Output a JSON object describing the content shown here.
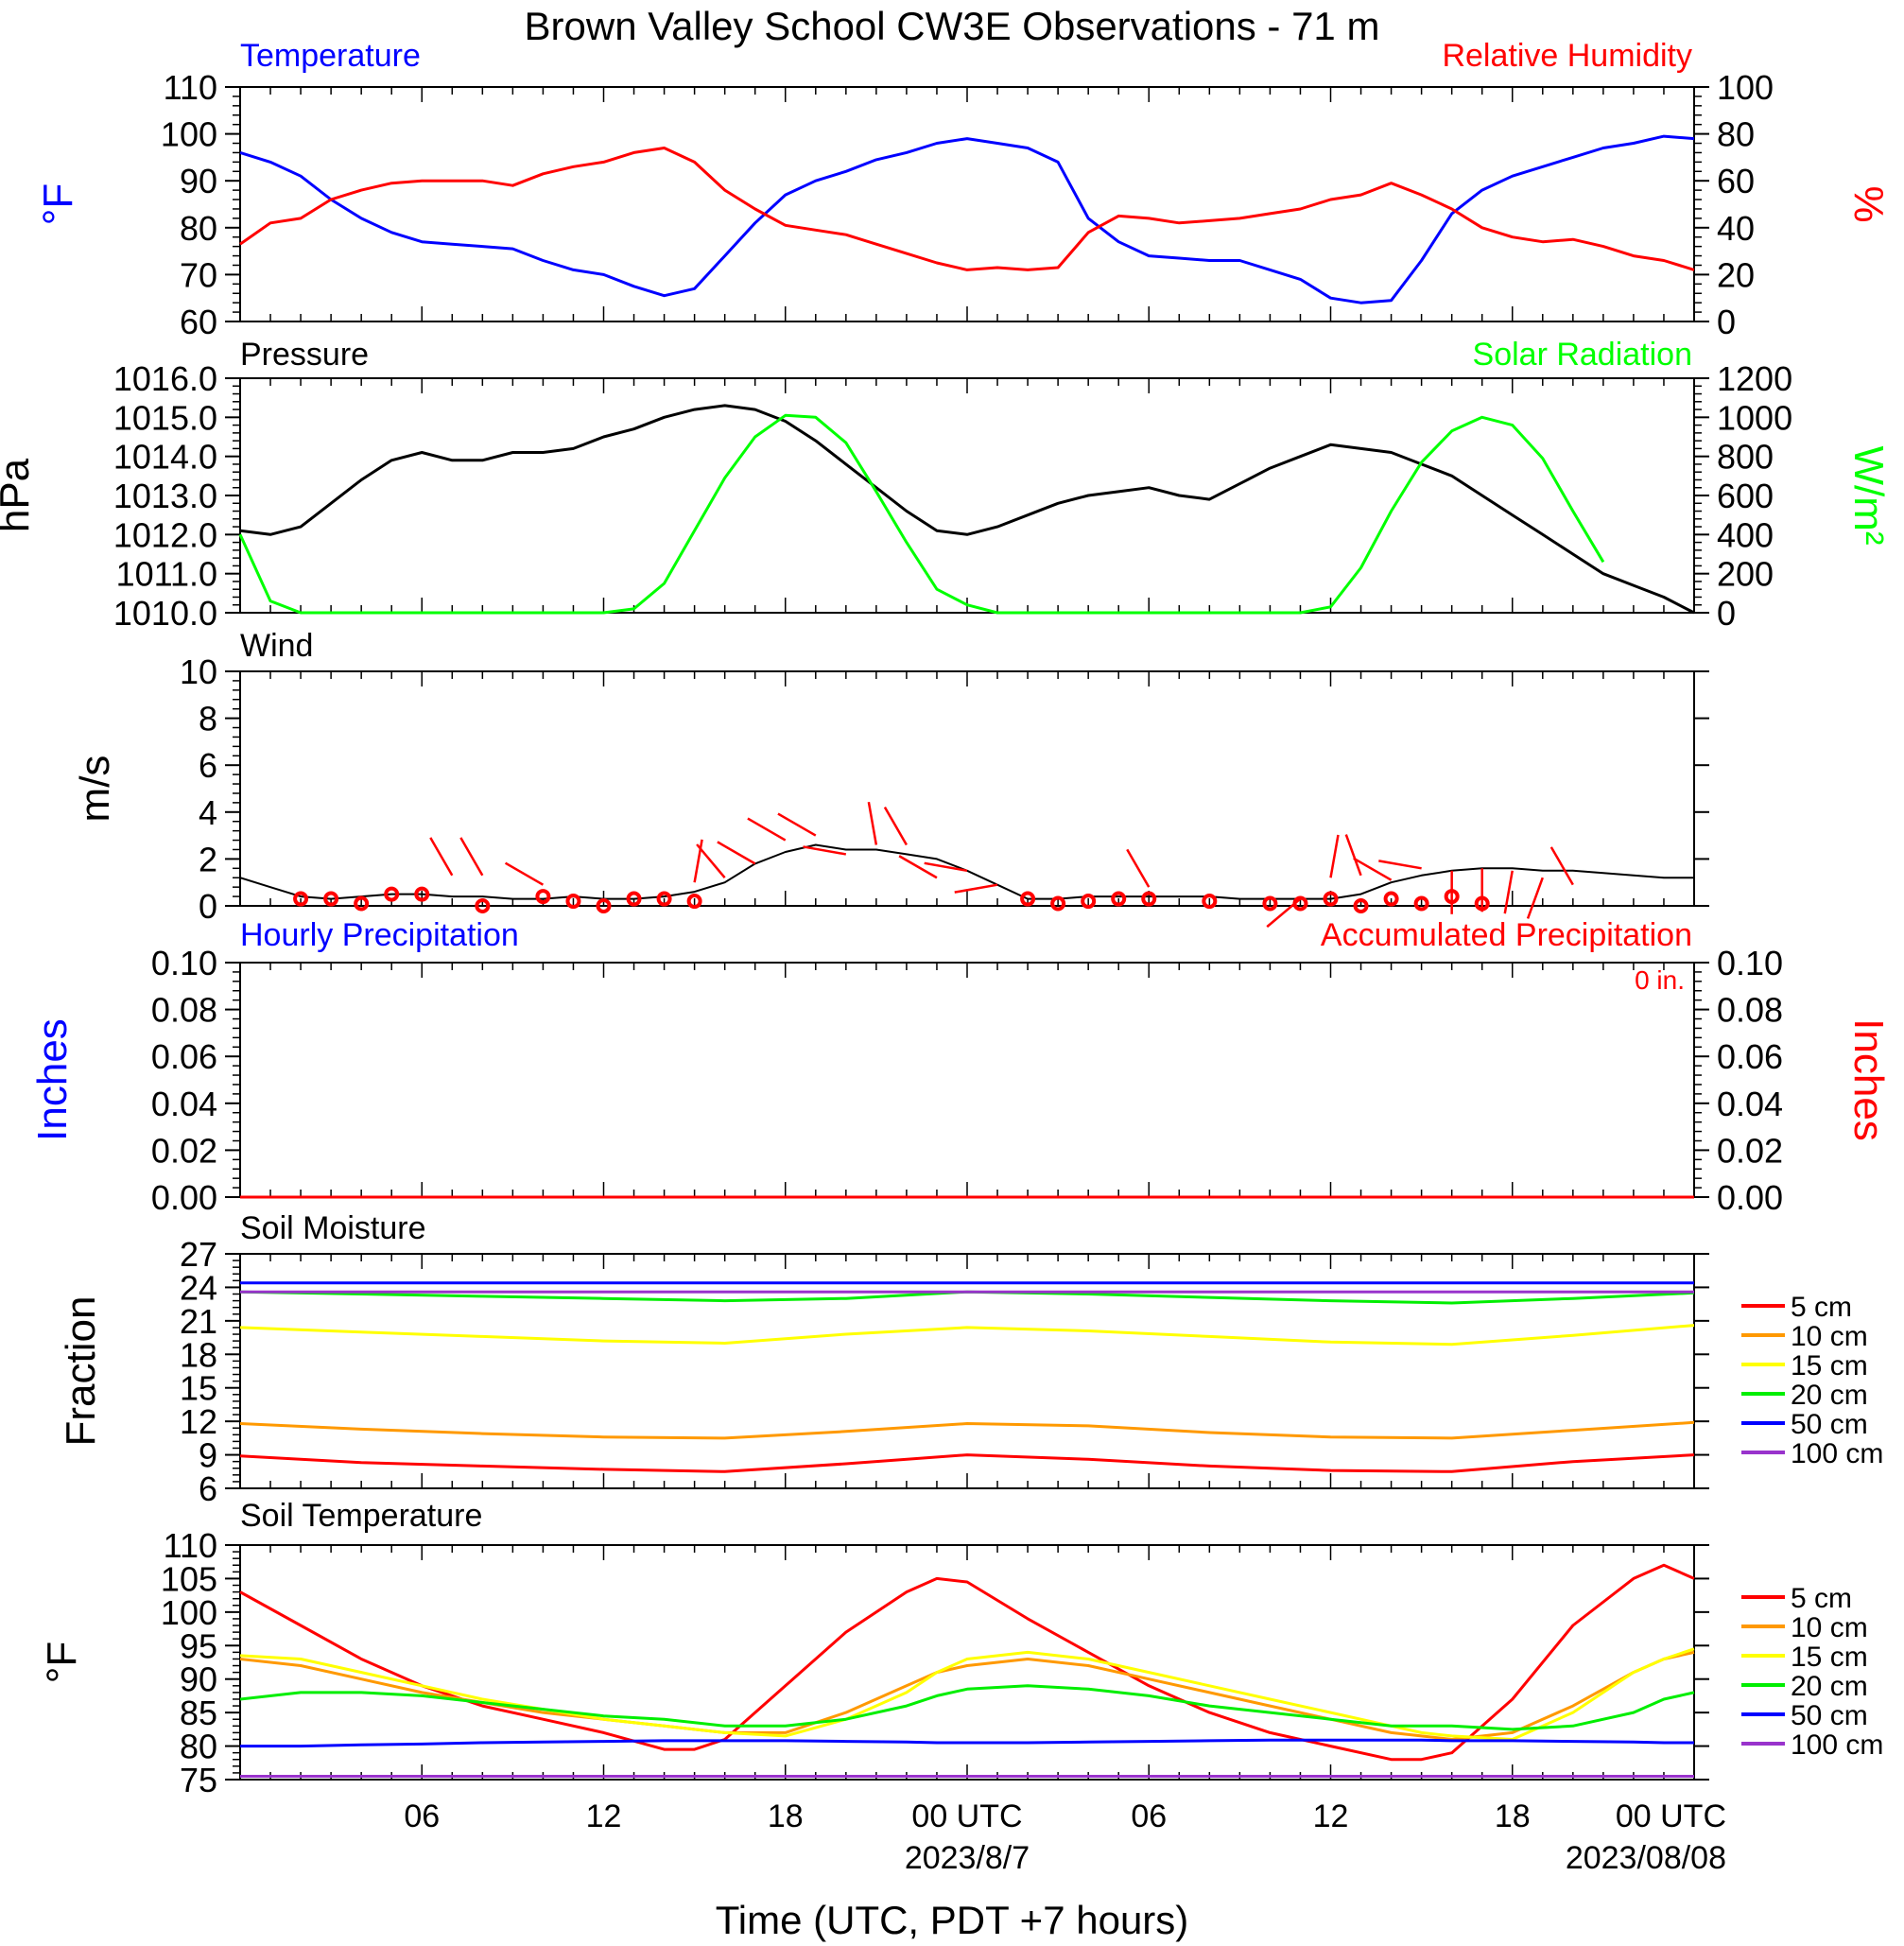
{
  "title": "Brown Valley School CW3E Observations - 71 m",
  "xlabel": "Time (UTC, PDT +7 hours)",
  "time_axis": {
    "ticks": [
      "06",
      "12",
      "18",
      "00 UTC",
      "06",
      "12",
      "18",
      "00 UTC"
    ],
    "dates": [
      "2023/8/7",
      "2023/08/08"
    ]
  },
  "colors": {
    "temperature": "#0000ff",
    "humidity": "#ff0000",
    "pressure": "#000000",
    "solar": "#00ff00",
    "wind": "#000000",
    "barb": "#ff0000",
    "hourly_precip": "#0000ff",
    "accum_precip": "#ff0000",
    "depth_5cm": "#ff0000",
    "depth_10cm": "#ff9900",
    "depth_15cm": "#ffff00",
    "depth_20cm": "#00ee00",
    "depth_50cm": "#0000ff",
    "depth_100cm": "#9933cc"
  },
  "chart_data": [
    {
      "type": "line",
      "panel": "temperature_humidity",
      "left_title": "Temperature",
      "right_title": "Relative Humidity",
      "ylabel_left": "°F",
      "ylabel_right": "%",
      "ylim_left": [
        60,
        110
      ],
      "ylim_right": [
        0,
        100
      ],
      "yticks_left": [
        "110",
        "100",
        "90",
        "80",
        "70",
        "60"
      ],
      "yticks_right": [
        "100",
        "80",
        "60",
        "40",
        "20",
        "0"
      ],
      "x": [
        0,
        1,
        2,
        3,
        4,
        5,
        6,
        7,
        8,
        9,
        10,
        11,
        12,
        13,
        14,
        15,
        16,
        17,
        18,
        19,
        20,
        21,
        22,
        23,
        24,
        25,
        26,
        27,
        28,
        29,
        30,
        31,
        32,
        33,
        34,
        35,
        36,
        37,
        38,
        39,
        40,
        41,
        42,
        43,
        44,
        45,
        46,
        47,
        48
      ],
      "series": [
        {
          "name": "Temperature",
          "axis": "left",
          "color_key": "temperature",
          "values": [
            96,
            94,
            91,
            86,
            82,
            79,
            77,
            76.5,
            76,
            75.5,
            73,
            71,
            70,
            67.5,
            65.5,
            67,
            74,
            81,
            87,
            90,
            92,
            94.5,
            96,
            98,
            99,
            98,
            97,
            94,
            82,
            77,
            74,
            73.5,
            73,
            73,
            71,
            69,
            65,
            64,
            64.5,
            73,
            83,
            88,
            91,
            93,
            95,
            97,
            98,
            99.5,
            99
          ]
        },
        {
          "name": "Relative Humidity",
          "axis": "right",
          "color_key": "humidity",
          "values": [
            33,
            42,
            44,
            52,
            56,
            59,
            60,
            60,
            60,
            58,
            63,
            66,
            68,
            72,
            74,
            68,
            56,
            48,
            41,
            39,
            37,
            33,
            29,
            25,
            22,
            23,
            22,
            23,
            38,
            45,
            44,
            42,
            43,
            44,
            46,
            48,
            52,
            54,
            59,
            54,
            48,
            40,
            36,
            34,
            35,
            32,
            28,
            26,
            22
          ]
        }
      ]
    },
    {
      "type": "line",
      "panel": "pressure_solar",
      "left_title": "Pressure",
      "right_title": "Solar Radiation",
      "ylabel_left": "hPa",
      "ylabel_right": "W/m²",
      "ylim_left": [
        1010,
        1016
      ],
      "ylim_right": [
        0,
        1200
      ],
      "yticks_left": [
        "1016.0",
        "1015.0",
        "1014.0",
        "1013.0",
        "1012.0",
        "1011.0",
        "1010.0"
      ],
      "yticks_right": [
        "1200",
        "1000",
        "800",
        "600",
        "400",
        "200",
        "0"
      ],
      "x": [
        0,
        1,
        2,
        3,
        4,
        5,
        6,
        7,
        8,
        9,
        10,
        11,
        12,
        13,
        14,
        15,
        16,
        17,
        18,
        19,
        20,
        21,
        22,
        23,
        24,
        25,
        26,
        27,
        28,
        29,
        30,
        31,
        32,
        33,
        34,
        35,
        36,
        37,
        38,
        39,
        40,
        41,
        42,
        43,
        44,
        45,
        46,
        47,
        48
      ],
      "series": [
        {
          "name": "Pressure",
          "axis": "left",
          "color_key": "pressure",
          "values": [
            1012.1,
            1012.0,
            1012.2,
            1012.8,
            1013.4,
            1013.9,
            1014.1,
            1013.9,
            1013.9,
            1014.1,
            1014.1,
            1014.2,
            1014.5,
            1014.7,
            1015.0,
            1015.2,
            1015.3,
            1015.2,
            1014.9,
            1014.4,
            1013.8,
            1013.2,
            1012.6,
            1012.1,
            1012.0,
            1012.2,
            1012.5,
            1012.8,
            1013.0,
            1013.1,
            1013.2,
            1013.0,
            1012.9,
            1013.3,
            1013.7,
            1014.0,
            1014.3,
            1014.2,
            1014.1,
            1013.8,
            1013.5,
            1013.0,
            1012.5,
            1012.0,
            1011.5,
            1011.0,
            1010.7,
            1010.4,
            1010.0
          ]
        },
        {
          "name": "Solar Radiation",
          "axis": "right",
          "color_key": "solar",
          "values": [
            400,
            60,
            0,
            0,
            0,
            0,
            0,
            0,
            0,
            0,
            0,
            0,
            0,
            20,
            150,
            420,
            690,
            900,
            1010,
            1000,
            870,
            620,
            360,
            120,
            40,
            0,
            0,
            0,
            0,
            0,
            0,
            0,
            0,
            0,
            0,
            0,
            30,
            230,
            520,
            770,
            930,
            1000,
            960,
            790,
            520,
            260,
            null,
            null,
            null
          ]
        }
      ]
    },
    {
      "type": "line",
      "panel": "wind",
      "left_title": "Wind",
      "ylabel_left": "m/s",
      "ylim_left": [
        0,
        10
      ],
      "yticks_left": [
        "10",
        "8",
        "6",
        "4",
        "2",
        "0"
      ],
      "x": [
        0,
        1,
        2,
        3,
        4,
        5,
        6,
        7,
        8,
        9,
        10,
        11,
        12,
        13,
        14,
        15,
        16,
        17,
        18,
        19,
        20,
        21,
        22,
        23,
        24,
        25,
        26,
        27,
        28,
        29,
        30,
        31,
        32,
        33,
        34,
        35,
        36,
        37,
        38,
        39,
        40,
        41,
        42,
        43,
        44,
        45,
        46,
        47,
        48
      ],
      "series": [
        {
          "name": "Wind speed",
          "axis": "left",
          "color_key": "wind",
          "values": [
            1.2,
            0.8,
            0.4,
            0.3,
            0.4,
            0.5,
            0.5,
            0.4,
            0.4,
            0.3,
            0.3,
            0.4,
            0.3,
            0.3,
            0.4,
            0.6,
            1.0,
            1.8,
            2.3,
            2.6,
            2.4,
            2.4,
            2.2,
            2.0,
            1.5,
            0.9,
            0.3,
            0.3,
            0.4,
            0.4,
            0.4,
            0.4,
            0.4,
            0.3,
            0.3,
            0.3,
            0.3,
            0.5,
            1.0,
            1.3,
            1.5,
            1.6,
            1.6,
            1.5,
            1.5,
            1.4,
            1.3,
            1.2,
            1.2
          ]
        }
      ],
      "calm_marks_hours": [
        2,
        3,
        4,
        5,
        6,
        8,
        10,
        11,
        12,
        13,
        14,
        15,
        26,
        27,
        28,
        29,
        30,
        32,
        34,
        35,
        36,
        37,
        38,
        39,
        40,
        41
      ],
      "calm_marks_speed": [
        0.3,
        0.3,
        0.1,
        0.5,
        0.5,
        0.0,
        0.4,
        0.2,
        0.0,
        0.3,
        0.3,
        0.2,
        0.3,
        0.1,
        0.2,
        0.3,
        0.3,
        0.2,
        0.1,
        0.1,
        0.3,
        0.0,
        0.3,
        0.1,
        0.4,
        0.1
      ],
      "barb_hours": [
        7,
        8,
        10,
        15,
        16,
        17,
        18,
        19,
        20,
        21,
        22,
        23,
        24,
        25,
        30,
        35,
        36,
        37,
        38,
        39,
        40,
        41,
        42,
        43,
        44
      ],
      "barb_speed": [
        1.3,
        1.3,
        0.9,
        1.0,
        1.2,
        1.8,
        2.8,
        3.0,
        2.2,
        2.6,
        2.6,
        1.2,
        1.5,
        0.9,
        0.8,
        0.3,
        1.2,
        1.3,
        1.1,
        1.6,
        1.5,
        1.6,
        1.5,
        1.2,
        0.9
      ],
      "barb_dir_deg": [
        330,
        330,
        300,
        10,
        320,
        300,
        300,
        300,
        280,
        350,
        330,
        300,
        280,
        260,
        330,
        230,
        10,
        340,
        300,
        280,
        180,
        180,
        190,
        200,
        330
      ]
    },
    {
      "type": "line",
      "panel": "precipitation",
      "left_title": "Hourly Precipitation",
      "right_title": "Accumulated Precipitation",
      "annotation": "0 in.",
      "ylabel_left": "Inches",
      "ylabel_right": "Inches",
      "ylim_left": [
        0,
        0.1
      ],
      "ylim_right": [
        0,
        0.1
      ],
      "yticks_left": [
        "0.10",
        "0.08",
        "0.06",
        "0.04",
        "0.02",
        "0.00"
      ],
      "yticks_right": [
        "0.10",
        "0.08",
        "0.06",
        "0.04",
        "0.02",
        "0.00"
      ],
      "x": [
        0,
        48
      ],
      "series": [
        {
          "name": "Hourly Precipitation",
          "axis": "left",
          "color_key": "hourly_precip",
          "values": [
            0,
            0
          ]
        },
        {
          "name": "Accumulated Precipitation",
          "axis": "right",
          "color_key": "accum_precip",
          "values": [
            0,
            0
          ]
        }
      ]
    },
    {
      "type": "line",
      "panel": "soil_moisture",
      "left_title": "Soil Moisture",
      "ylabel_left": "Fraction",
      "ylim_left": [
        6,
        27
      ],
      "yticks_left": [
        "27",
        "24",
        "21",
        "18",
        "15",
        "12",
        "9",
        "6"
      ],
      "x": [
        0,
        4,
        8,
        12,
        16,
        20,
        24,
        28,
        32,
        36,
        40,
        44,
        48
      ],
      "series": [
        {
          "name": "5 cm",
          "color_key": "depth_5cm",
          "values": [
            8.9,
            8.3,
            8.0,
            7.7,
            7.5,
            8.2,
            9.0,
            8.6,
            8.0,
            7.6,
            7.5,
            8.4,
            9.0
          ]
        },
        {
          "name": "10 cm",
          "color_key": "depth_10cm",
          "values": [
            11.8,
            11.3,
            10.9,
            10.6,
            10.5,
            11.1,
            11.8,
            11.6,
            11.0,
            10.6,
            10.5,
            11.2,
            11.9
          ]
        },
        {
          "name": "15 cm",
          "color_key": "depth_15cm",
          "values": [
            20.4,
            20.0,
            19.6,
            19.2,
            19.0,
            19.8,
            20.4,
            20.1,
            19.6,
            19.1,
            18.9,
            19.7,
            20.6
          ]
        },
        {
          "name": "20 cm",
          "color_key": "depth_20cm",
          "values": [
            23.6,
            23.4,
            23.2,
            23.0,
            22.8,
            23.0,
            23.6,
            23.4,
            23.1,
            22.8,
            22.6,
            23.0,
            23.5
          ]
        },
        {
          "name": "50 cm",
          "color_key": "depth_50cm",
          "values": [
            24.4,
            24.4,
            24.4,
            24.4,
            24.4,
            24.4,
            24.4,
            24.4,
            24.4,
            24.4,
            24.4,
            24.4,
            24.4
          ]
        },
        {
          "name": "100 cm",
          "color_key": "depth_100cm",
          "values": [
            23.6,
            23.6,
            23.6,
            23.6,
            23.6,
            23.6,
            23.6,
            23.6,
            23.6,
            23.6,
            23.6,
            23.6,
            23.6
          ]
        }
      ]
    },
    {
      "type": "line",
      "panel": "soil_temperature",
      "left_title": "Soil Temperature",
      "ylabel_left": "°F",
      "ylim_left": [
        75,
        110
      ],
      "yticks_left": [
        "110",
        "105",
        "100",
        "95",
        "90",
        "85",
        "80",
        "75"
      ],
      "x": [
        0,
        2,
        4,
        6,
        8,
        10,
        12,
        14,
        15,
        16,
        18,
        20,
        22,
        23,
        24,
        26,
        28,
        30,
        32,
        34,
        36,
        38,
        39,
        40,
        42,
        44,
        46,
        47,
        48
      ],
      "series": [
        {
          "name": "5 cm",
          "color_key": "depth_5cm",
          "values": [
            103,
            98,
            93,
            89,
            86,
            84,
            82,
            79.5,
            79.5,
            81,
            89,
            97,
            103,
            105,
            104.5,
            99,
            94,
            89,
            85,
            82,
            80,
            78,
            78,
            79,
            87,
            98,
            105,
            107,
            105
          ]
        },
        {
          "name": "10 cm",
          "color_key": "depth_10cm",
          "values": [
            93,
            92,
            90,
            88,
            86.5,
            85,
            84,
            83,
            82.5,
            82,
            82,
            85,
            89,
            91,
            92,
            93,
            92,
            90,
            88,
            86,
            84,
            82,
            81.5,
            81,
            82,
            86,
            91,
            93,
            94
          ]
        },
        {
          "name": "15 cm",
          "color_key": "depth_15cm",
          "values": [
            93.5,
            93,
            91,
            89,
            87,
            85.5,
            84,
            83,
            82.5,
            82,
            81.5,
            84,
            88,
            91,
            93,
            94,
            93,
            91,
            89,
            87,
            85,
            83,
            82,
            81.5,
            81,
            85,
            91,
            93,
            94.5
          ]
        },
        {
          "name": "20 cm",
          "color_key": "depth_20cm",
          "values": [
            87,
            88,
            88,
            87.5,
            86.5,
            85.5,
            84.5,
            84,
            83.5,
            83,
            83,
            84,
            86,
            87.5,
            88.5,
            89,
            88.5,
            87.5,
            86,
            85,
            84,
            83,
            83,
            83,
            82.5,
            83,
            85,
            87,
            88
          ]
        },
        {
          "name": "50 cm",
          "color_key": "depth_50cm",
          "values": [
            80,
            80,
            80.2,
            80.3,
            80.5,
            80.6,
            80.7,
            80.8,
            80.8,
            80.8,
            80.8,
            80.7,
            80.6,
            80.5,
            80.5,
            80.5,
            80.6,
            80.7,
            80.8,
            80.9,
            80.9,
            80.9,
            80.9,
            80.8,
            80.8,
            80.7,
            80.6,
            80.5,
            80.5
          ]
        },
        {
          "name": "100 cm",
          "color_key": "depth_100cm",
          "values": [
            75.5,
            75.5,
            75.5,
            75.5,
            75.5,
            75.5,
            75.5,
            75.5,
            75.5,
            75.5,
            75.5,
            75.5,
            75.5,
            75.5,
            75.5,
            75.5,
            75.5,
            75.5,
            75.5,
            75.5,
            75.5,
            75.5,
            75.5,
            75.5,
            75.5,
            75.5,
            75.5,
            75.5,
            75.5
          ]
        }
      ]
    }
  ]
}
